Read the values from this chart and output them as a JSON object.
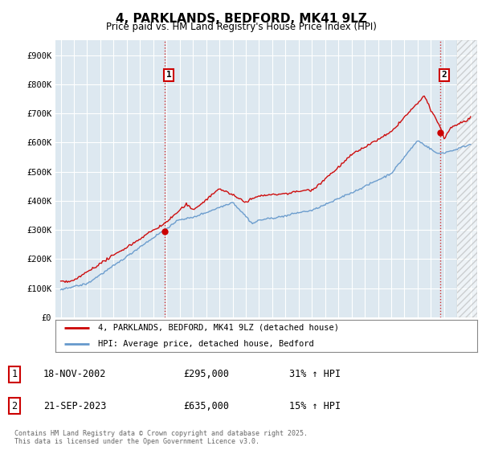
{
  "title": "4, PARKLANDS, BEDFORD, MK41 9LZ",
  "subtitle": "Price paid vs. HM Land Registry's House Price Index (HPI)",
  "background_color": "#ffffff",
  "chart_bg_color": "#dde8f0",
  "grid_color": "#ffffff",
  "ylim": [
    0,
    950000
  ],
  "xlim_start": 1994.6,
  "xlim_end": 2026.5,
  "yticks": [
    0,
    100000,
    200000,
    300000,
    400000,
    500000,
    600000,
    700000,
    800000,
    900000
  ],
  "ytick_labels": [
    "£0",
    "£100K",
    "£200K",
    "£300K",
    "£400K",
    "£500K",
    "£600K",
    "£700K",
    "£800K",
    "£900K"
  ],
  "sale1_date": 2002.88,
  "sale1_price": 295000,
  "sale1_label": "1",
  "sale2_date": 2023.72,
  "sale2_price": 635000,
  "sale2_label": "2",
  "red_line_color": "#cc0000",
  "blue_line_color": "#6699cc",
  "vline_color": "#cc0000",
  "legend_line1": "4, PARKLANDS, BEDFORD, MK41 9LZ (detached house)",
  "legend_line2": "HPI: Average price, detached house, Bedford",
  "table_row1": [
    "1",
    "18-NOV-2002",
    "£295,000",
    "31% ↑ HPI"
  ],
  "table_row2": [
    "2",
    "21-SEP-2023",
    "£635,000",
    "15% ↑ HPI"
  ],
  "footer": "Contains HM Land Registry data © Crown copyright and database right 2025.\nThis data is licensed under the Open Government Licence v3.0."
}
